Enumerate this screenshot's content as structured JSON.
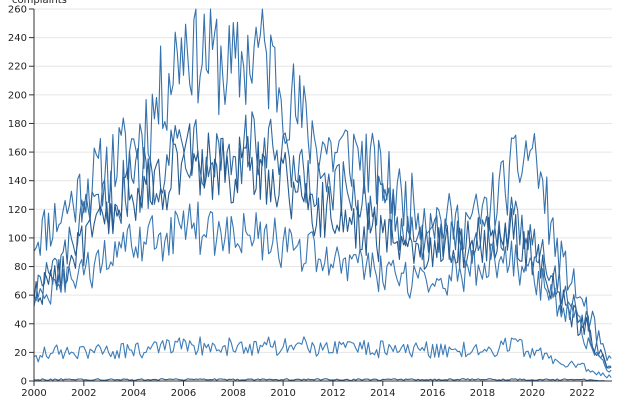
{
  "chart_data": {
    "type": "line",
    "title": "",
    "xlabel": "",
    "ylabel": "complaints",
    "xlim": [
      2000,
      2023.2
    ],
    "ylim": [
      0,
      260
    ],
    "x_ticks": [
      2000,
      2002,
      2004,
      2006,
      2008,
      2010,
      2012,
      2014,
      2016,
      2018,
      2020,
      2022
    ],
    "x_tick_labels": [
      "2000",
      "2002",
      "2004",
      "2006",
      "2008",
      "2010",
      "2012",
      "2014",
      "2016",
      "2018",
      "2020",
      "2022"
    ],
    "y_ticks": [
      0,
      20,
      40,
      60,
      80,
      100,
      120,
      140,
      160,
      180,
      200,
      220,
      240,
      260
    ],
    "y_tick_labels": [
      "0",
      "20",
      "40",
      "60",
      "80",
      "100",
      "120",
      "140",
      "160",
      "180",
      "200",
      "220",
      "240",
      "260"
    ],
    "grid": true,
    "legend": "none",
    "colors": [
      "#2f6aa3",
      "#3572ad",
      "#2a5f96",
      "#3a78b3",
      "#275a8f",
      "#3d7db8",
      "#1f4f85"
    ],
    "series": [
      {
        "color": "#3572ad",
        "x": [
          2000,
          2001,
          2002,
          2003,
          2004,
          2005,
          2006,
          2007,
          2008,
          2009,
          2010,
          2011,
          2012,
          2013,
          2014,
          2015,
          2016,
          2017,
          2018,
          2019,
          2020,
          2021,
          2022,
          2023
        ],
        "values": [
          100,
          115,
          135,
          150,
          165,
          195,
          240,
          230,
          215,
          235,
          205,
          175,
          160,
          160,
          140,
          125,
          115,
          110,
          115,
          140,
          165,
          90,
          55,
          15
        ]
      },
      {
        "color": "#2f6aa3",
        "x": [
          2000,
          2001,
          2002,
          2003,
          2004,
          2005,
          2006,
          2007,
          2008,
          2009,
          2010,
          2011,
          2012,
          2013,
          2014,
          2015,
          2016,
          2017,
          2018,
          2019,
          2020,
          2021,
          2022,
          2023
        ],
        "values": [
          65,
          80,
          110,
          125,
          140,
          150,
          170,
          165,
          155,
          165,
          150,
          135,
          130,
          130,
          120,
          105,
          100,
          95,
          100,
          110,
          105,
          70,
          45,
          10
        ]
      },
      {
        "color": "#275a8f",
        "x": [
          2000,
          2001,
          2002,
          2003,
          2004,
          2005,
          2006,
          2007,
          2008,
          2009,
          2010,
          2011,
          2012,
          2013,
          2014,
          2015,
          2016,
          2017,
          2018,
          2019,
          2020,
          2021,
          2022,
          2023
        ],
        "values": [
          60,
          75,
          95,
          115,
          130,
          140,
          155,
          150,
          145,
          150,
          140,
          125,
          115,
          110,
          100,
          95,
          95,
          95,
          100,
          105,
          90,
          60,
          40,
          10
        ]
      },
      {
        "color": "#3a78b3",
        "x": [
          2000,
          2001,
          2002,
          2003,
          2004,
          2005,
          2006,
          2007,
          2008,
          2009,
          2010,
          2011,
          2012,
          2013,
          2014,
          2015,
          2016,
          2017,
          2018,
          2019,
          2020,
          2021,
          2022,
          2023
        ],
        "values": [
          55,
          65,
          75,
          85,
          95,
          100,
          110,
          105,
          100,
          100,
          95,
          90,
          85,
          80,
          75,
          70,
          70,
          75,
          80,
          85,
          75,
          55,
          35,
          8
        ]
      },
      {
        "color": "#3d7db8",
        "x": [
          2000,
          2001,
          2002,
          2003,
          2004,
          2005,
          2006,
          2007,
          2008,
          2009,
          2010,
          2011,
          2012,
          2013,
          2014,
          2015,
          2016,
          2017,
          2018,
          2019,
          2020,
          2021,
          2022,
          2023
        ],
        "values": [
          18,
          20,
          20,
          21,
          22,
          22,
          24,
          25,
          24,
          24,
          25,
          24,
          22,
          23,
          22,
          21,
          22,
          21,
          22,
          24,
          22,
          15,
          10,
          3
        ]
      },
      {
        "color": "#2a5f96",
        "x": [
          2000,
          2001,
          2002,
          2003,
          2004,
          2005,
          2006,
          2007,
          2008,
          2009,
          2010,
          2011,
          2012,
          2013,
          2014,
          2015,
          2016,
          2017,
          2018,
          2019,
          2020,
          2021,
          2022,
          2023
        ],
        "values": [
          1,
          1,
          1,
          1,
          1,
          1,
          1,
          1,
          1,
          1,
          1,
          1,
          1,
          1,
          1,
          1,
          1,
          1,
          1,
          1,
          1,
          1,
          1,
          0
        ]
      },
      {
        "color": "#1f4f85",
        "x": [
          2000,
          2001,
          2002,
          2003,
          2004,
          2005,
          2006,
          2007,
          2008,
          2009,
          2010,
          2011,
          2012,
          2013,
          2014,
          2015,
          2016,
          2017,
          2018,
          2019,
          2020,
          2021,
          2022,
          2023
        ],
        "values": [
          0,
          0,
          0,
          0,
          0,
          0,
          0,
          0,
          0,
          0,
          0,
          0,
          0,
          0,
          0,
          0,
          0,
          0,
          0,
          0,
          0,
          0,
          0,
          0
        ]
      }
    ]
  }
}
